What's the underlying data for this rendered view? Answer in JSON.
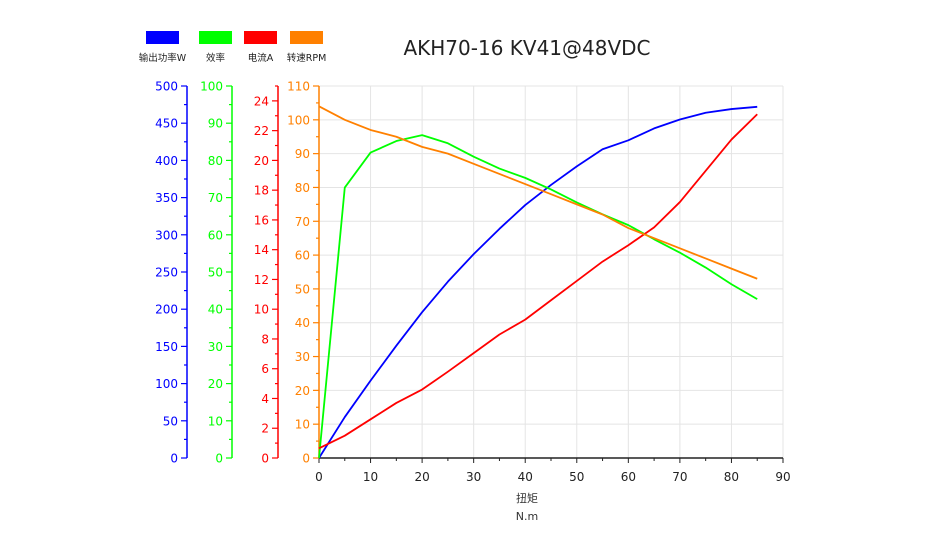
{
  "chart_data": {
    "type": "line",
    "title": "AKH70-16 KV41@48VDC",
    "xlabel": "扭矩",
    "xunit": "N.m",
    "xlim": [
      0,
      90
    ],
    "xticks": [
      0,
      10,
      20,
      30,
      40,
      50,
      60,
      70,
      80,
      90
    ],
    "grid": true,
    "legend_position": "top-left",
    "x": [
      0,
      5,
      10,
      15,
      20,
      25,
      30,
      35,
      40,
      45,
      50,
      55,
      60,
      65,
      70,
      75,
      80,
      85
    ],
    "series": [
      {
        "name": "输出功率W",
        "color": "#0000ff",
        "axis": "power",
        "values": [
          0,
          55,
          104,
          151,
          196,
          237,
          274,
          308,
          340,
          367,
          392,
          415,
          427,
          443,
          455,
          464,
          469,
          472
        ]
      },
      {
        "name": "效率",
        "color": "#00ff00",
        "axis": "efficiency",
        "values": [
          0,
          72.7,
          82.1,
          85.2,
          86.8,
          84.6,
          81.0,
          77.8,
          75.3,
          72.2,
          68.7,
          65.5,
          62.6,
          58.8,
          55.2,
          51.2,
          46.7,
          42.7
        ]
      },
      {
        "name": "电流A",
        "color": "#ff0000",
        "axis": "current",
        "values": [
          0.65,
          1.5,
          2.6,
          3.7,
          4.6,
          5.8,
          7.05,
          8.3,
          9.3,
          10.6,
          11.9,
          13.2,
          14.3,
          15.5,
          17.2,
          19.3,
          21.4,
          23.1
        ]
      },
      {
        "name": "转速RPM",
        "color": "#ff8000",
        "axis": "rpm",
        "values": [
          104,
          100,
          97,
          95,
          92,
          90,
          87,
          84,
          81,
          78,
          75,
          72,
          68,
          65,
          62,
          59,
          56,
          53
        ]
      }
    ],
    "y_axes": [
      {
        "id": "power",
        "color": "#0000ff",
        "ylim": [
          0,
          500
        ],
        "major": 50,
        "minor": 25,
        "ticks": [
          "0",
          "50",
          "100",
          "150",
          "200",
          "250",
          "300",
          "350",
          "400",
          "450",
          "500"
        ]
      },
      {
        "id": "efficiency",
        "color": "#00ff00",
        "ylim": [
          0,
          100
        ],
        "major": 10,
        "minor": 5,
        "ticks": [
          "0",
          "10",
          "20",
          "30",
          "40",
          "50",
          "60",
          "70",
          "80",
          "90",
          "100"
        ]
      },
      {
        "id": "current",
        "color": "#ff0000",
        "ylim": [
          0,
          25
        ],
        "major": 2,
        "minor": 1,
        "ticks": [
          "0",
          "2",
          "4",
          "6",
          "8",
          "10",
          "12",
          "14",
          "16",
          "18",
          "20",
          "22",
          "24"
        ]
      },
      {
        "id": "rpm",
        "color": "#ff8000",
        "ylim": [
          0,
          110
        ],
        "major": 10,
        "minor": 5,
        "ticks": [
          "0",
          "10",
          "20",
          "30",
          "40",
          "50",
          "60",
          "70",
          "80",
          "90",
          "100",
          "110"
        ]
      }
    ]
  }
}
